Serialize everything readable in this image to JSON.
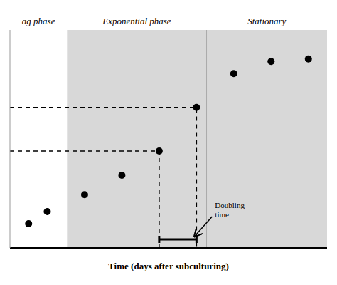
{
  "chart_data": {
    "type": "scatter",
    "xlabel": "Time (days after subculturing)",
    "x": [
      1,
      2,
      4,
      6,
      8,
      10,
      12,
      14,
      16
    ],
    "values": [
      1,
      1.5,
      2.2,
      3.0,
      4.0,
      5.8,
      7.2,
      7.7,
      7.8
    ],
    "xlim": [
      0,
      17
    ],
    "ylim": [
      0,
      9
    ],
    "tick_labels": false,
    "grid": false,
    "color": "#000000",
    "phases": [
      {
        "label": "ag phase",
        "start": 0,
        "end": 3.06
      },
      {
        "label": "Exponential phase",
        "start": 3.06,
        "end": 10.54,
        "color": "#d8d8d8"
      },
      {
        "label": "Stationary",
        "start": 10.54,
        "end": 17,
        "color": "#d8d8d8"
      }
    ],
    "guides": [
      {
        "x": 8,
        "y": 4.0
      },
      {
        "x": 10,
        "y": 5.8
      }
    ],
    "annotations": [
      {
        "text": "Doubling\ntime"
      }
    ]
  }
}
